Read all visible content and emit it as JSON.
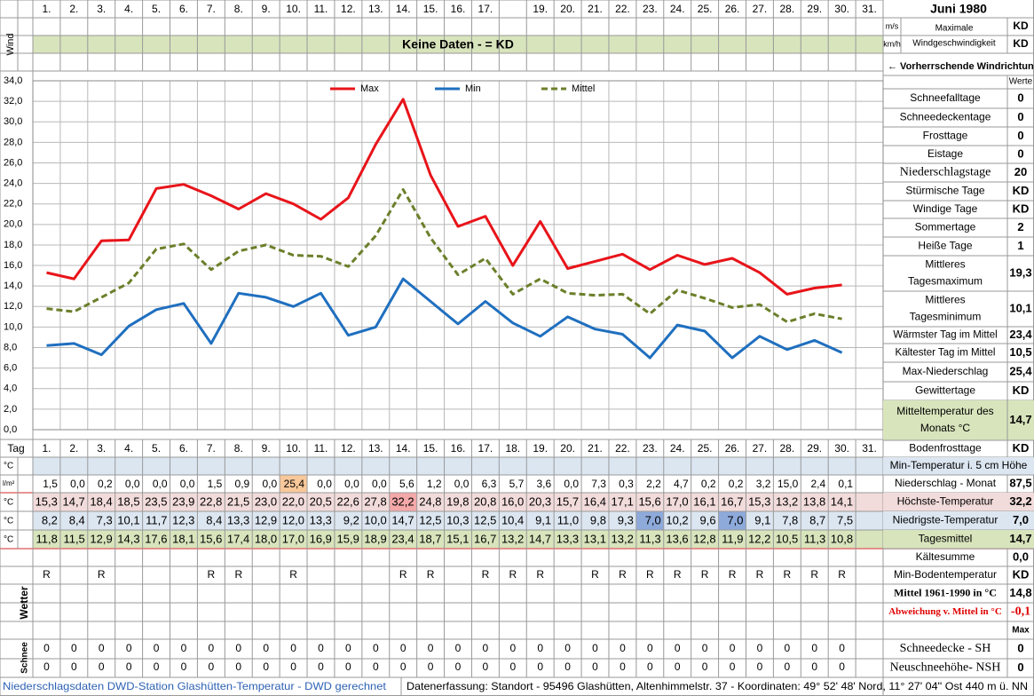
{
  "chart_data": {
    "type": "line",
    "categories": [
      "1.",
      "2.",
      "3.",
      "4.",
      "5.",
      "6.",
      "7.",
      "8.",
      "9.",
      "10.",
      "11.",
      "12.",
      "13.",
      "14.",
      "15.",
      "16.",
      "17.",
      "18.",
      "19.",
      "20.",
      "21.",
      "22.",
      "23.",
      "24.",
      "25.",
      "26.",
      "27.",
      "28.",
      "29.",
      "30.",
      "31."
    ],
    "series": [
      {
        "name": "Max",
        "color": "#e8141a",
        "dash": false,
        "values": [
          15.3,
          14.7,
          18.4,
          18.5,
          23.5,
          23.9,
          22.8,
          21.5,
          23.0,
          22.0,
          20.5,
          22.6,
          27.8,
          32.2,
          24.8,
          19.8,
          20.8,
          16.0,
          20.3,
          15.7,
          16.4,
          17.1,
          15.6,
          17.0,
          16.1,
          16.7,
          15.3,
          13.2,
          13.8,
          14.1,
          null
        ],
        "value_labels": [
          "15,3",
          "14,7",
          "18,4",
          "18,5",
          "23,5",
          "23,9",
          "22,8",
          "21,5",
          "23,0",
          "22,0",
          "20,5",
          "22,6",
          "27,8",
          "32,2",
          "24,8",
          "19,8",
          "20,8",
          "16,0",
          "20,3",
          "15,7",
          "16,4",
          "17,1",
          "15,6",
          "17,0",
          "16,1",
          "16,7",
          "15,3",
          "13,2",
          "13,8",
          "14,1",
          null
        ]
      },
      {
        "name": "Min",
        "color": "#1f6fbf",
        "dash": false,
        "values": [
          8.2,
          8.4,
          7.3,
          10.1,
          11.7,
          12.3,
          8.4,
          13.3,
          12.9,
          12.0,
          13.3,
          9.2,
          10.0,
          14.7,
          12.5,
          10.3,
          12.5,
          10.4,
          9.1,
          11.0,
          9.8,
          9.3,
          7.0,
          10.2,
          9.6,
          7.0,
          9.1,
          7.8,
          8.7,
          7.5,
          null
        ],
        "value_labels": [
          "8,2",
          "8,4",
          "7,3",
          "10,1",
          "11,7",
          "12,3",
          "8,4",
          "13,3",
          "12,9",
          "12,0",
          "13,3",
          "9,2",
          "10,0",
          "14,7",
          "12,5",
          "10,3",
          "12,5",
          "10,4",
          "9,1",
          "11,0",
          "9,8",
          "9,3",
          "7,0",
          "10,2",
          "9,6",
          "7,0",
          "9,1",
          "7,8",
          "8,7",
          "7,5",
          null
        ]
      },
      {
        "name": "Mittel",
        "color": "#6b7f2a",
        "dash": true,
        "values": [
          11.8,
          11.5,
          12.9,
          14.3,
          17.6,
          18.1,
          15.6,
          17.4,
          18.0,
          17.0,
          16.9,
          15.9,
          18.9,
          23.4,
          18.7,
          15.1,
          16.7,
          13.2,
          14.7,
          13.3,
          13.1,
          13.2,
          11.3,
          13.6,
          12.8,
          11.9,
          12.2,
          10.5,
          11.3,
          10.8,
          null
        ],
        "value_labels": [
          "11,8",
          "11,5",
          "12,9",
          "14,3",
          "17,6",
          "18,1",
          "15,6",
          "17,4",
          "18,0",
          "17,0",
          "16,9",
          "15,9",
          "18,9",
          "23,4",
          "18,7",
          "15,1",
          "16,7",
          "13,2",
          "14,7",
          "13,3",
          "13,1",
          "13,2",
          "11,3",
          "13,6",
          "12,8",
          "11,9",
          "12,2",
          "10,5",
          "11,3",
          "10,8",
          null
        ]
      }
    ],
    "ylim": [
      0,
      34
    ],
    "yticks": [
      {
        "value": 0,
        "label": "0,0"
      },
      {
        "value": 2,
        "label": "2,0"
      },
      {
        "value": 4,
        "label": "4,0"
      },
      {
        "value": 6,
        "label": "6,0"
      },
      {
        "value": 8,
        "label": "8,0"
      },
      {
        "value": 10,
        "label": "10,0"
      },
      {
        "value": 12,
        "label": "12,0"
      },
      {
        "value": 14,
        "label": "14,0"
      },
      {
        "value": 16,
        "label": "16,0"
      },
      {
        "value": 18,
        "label": "18,0"
      },
      {
        "value": 20,
        "label": "20,0"
      },
      {
        "value": 22,
        "label": "22,0"
      },
      {
        "value": 24,
        "label": "24,0"
      },
      {
        "value": 26,
        "label": "26,0"
      },
      {
        "value": 28,
        "label": "28,0"
      },
      {
        "value": 30,
        "label": "30,0"
      },
      {
        "value": 32,
        "label": "32,0"
      },
      {
        "value": 34,
        "label": "34,0"
      }
    ],
    "grid": true,
    "legend": "top"
  },
  "sheet": {
    "title": "Juni 1980",
    "header_days": [
      "1.",
      "2.",
      "3.",
      "4.",
      "5.",
      "6.",
      "7.",
      "8.",
      "9.",
      "10.",
      "11.",
      "12.",
      "13.",
      "14.",
      "15.",
      "16.",
      "17.",
      null,
      "19.",
      "20.",
      "21.",
      "22.",
      "23.",
      "24.",
      "25.",
      "26.",
      "27.",
      "28.",
      "29.",
      "30.",
      "31."
    ],
    "wind_label": "Wind",
    "wind_units": [
      "m/s",
      "km/h"
    ],
    "wind_max_label": [
      "Maximale",
      "Windgeschwindigkeit"
    ],
    "wind_max_values": [
      "KD",
      "KD"
    ],
    "banner": "Keine Daten -  = KD",
    "wind_direction": "← Vorherrschende Windrichtung",
    "values_header": "Werte",
    "tag_label": "Tag",
    "min5_unit": "°C",
    "rain_unit": "l/m²",
    "rain": [
      "1,5",
      "0,0",
      "0,2",
      "0,0",
      "0,0",
      "0,0",
      "1,5",
      "0,9",
      "0,0",
      "25,4",
      "0,0",
      "0,0",
      "0,0",
      "5,6",
      "1,2",
      "0,0",
      "6,3",
      "5,7",
      "3,6",
      "0,0",
      "7,3",
      "0,3",
      "2,2",
      "4,7",
      "0,2",
      "0,2",
      "3,2",
      "15,0",
      "2,4",
      "0,1",
      null
    ],
    "temp_units": [
      "°C",
      "°C",
      "°C"
    ],
    "weather_label": "Wetter",
    "weather": [
      "R",
      null,
      "R",
      null,
      null,
      null,
      "R",
      "R",
      null,
      "R",
      null,
      null,
      null,
      "R",
      "R",
      null,
      "R",
      "R",
      "R",
      null,
      "R",
      "R",
      "R",
      "R",
      "R",
      "R",
      "R",
      "R",
      "R",
      "R",
      null
    ],
    "snow_label": "Schnee",
    "snow": [
      [
        0,
        0,
        0,
        0,
        0,
        0,
        0,
        0,
        0,
        0,
        0,
        0,
        0,
        0,
        0,
        0,
        0,
        0,
        0,
        0,
        0,
        0,
        0,
        0,
        0,
        0,
        0,
        0,
        0,
        0,
        null
      ],
      [
        0,
        0,
        0,
        0,
        0,
        0,
        0,
        0,
        0,
        0,
        0,
        0,
        0,
        0,
        0,
        0,
        0,
        0,
        0,
        0,
        0,
        0,
        0,
        0,
        0,
        0,
        0,
        0,
        0,
        0,
        null
      ]
    ],
    "stats": [
      {
        "label": [
          "Schneefalltage"
        ],
        "value": "0"
      },
      {
        "label": [
          "Schneedeckentage"
        ],
        "value": "0"
      },
      {
        "label": [
          "Frosttage"
        ],
        "value": "0"
      },
      {
        "label": [
          "Eistage"
        ],
        "value": "0"
      },
      {
        "label": [
          "Niederschlagstage"
        ],
        "value": "20"
      },
      {
        "label": [
          "Stürmische Tage"
        ],
        "value": "KD"
      },
      {
        "label": [
          "Windige Tage"
        ],
        "value": "KD"
      },
      {
        "label": [
          "Sommertage"
        ],
        "value": "2"
      },
      {
        "label": [
          "Heiße Tage"
        ],
        "value": "1"
      },
      {
        "label": [
          "Mittleres",
          "Tagesmaximum"
        ],
        "value": "19,3"
      },
      {
        "label": [
          "Mittleres",
          "Tagesminimum"
        ],
        "value": "10,1"
      },
      {
        "label": [
          "Wärmster Tag im Mittel"
        ],
        "value": "23,4"
      },
      {
        "label": [
          "Kältester Tag im Mittel"
        ],
        "value": "10,5"
      },
      {
        "label": [
          "Max-Niederschlag"
        ],
        "value": "25,4"
      },
      {
        "label": [
          "Gewittertage"
        ],
        "value": "KD"
      },
      {
        "label": [
          "Mitteltemperatur des",
          "Monats °C"
        ],
        "value": "14,7"
      },
      {
        "label": [
          "Bodenfrosttage"
        ],
        "value": "KD"
      },
      {
        "label": [
          "Min-Temperatur i. 5 cm Höhe"
        ]
      },
      {
        "label": [
          "Niederschlag - Monat"
        ],
        "value": "87,5"
      },
      {
        "label": [
          "Höchste-Temperatur"
        ],
        "value": "32,2"
      },
      {
        "label": [
          "Niedrigste-Temperatur"
        ],
        "value": "7,0"
      },
      {
        "label": [
          "Tagesmittel"
        ],
        "value": "14,7"
      },
      {
        "label": [
          "Kältesumme"
        ],
        "value": "0,0"
      },
      {
        "label": [
          "Min-Bodentemperatur"
        ],
        "value": "KD"
      },
      {
        "label": [
          "Mittel 1961-1990 in °C"
        ],
        "value": "14,8"
      },
      {
        "label": [
          "Abweichung v. Mittel in °C"
        ],
        "value": "-0,1"
      },
      {
        "value": "Max"
      },
      {
        "label": [
          "Schneedecke -   SH"
        ],
        "value": "0"
      },
      {
        "label": [
          "Neuschneehöhe- NSH"
        ],
        "value": "0"
      }
    ],
    "footer_left": "Niederschlagsdaten DWD-Station Glashütten-Temperatur -  DWD gerechnet",
    "footer_right": "Datenerfassung: Standort -  95496  Glashütten, Altenhimmelstr. 37 - Koordinaten: 49° 52' 48' Nord,  11° 27' 04'' Ost  440 m ü. NN"
  }
}
